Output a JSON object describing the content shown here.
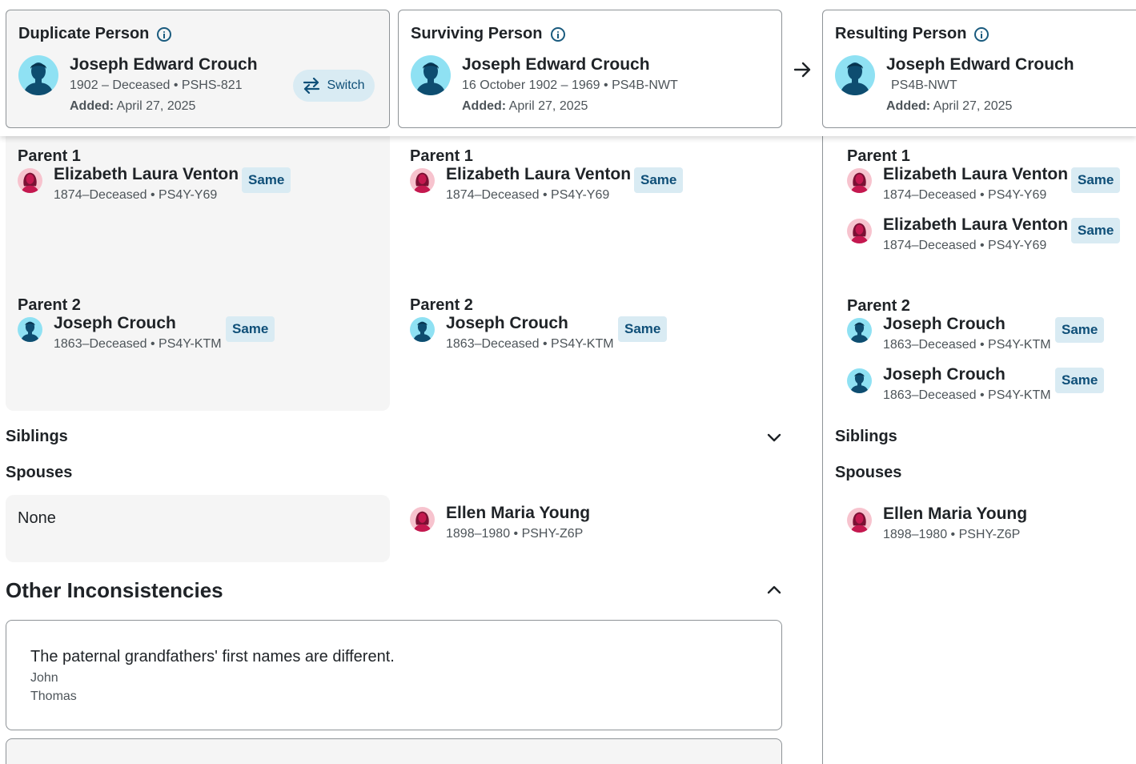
{
  "header": {
    "duplicate": {
      "title": "Duplicate Person",
      "name": "Joseph Edward Crouch",
      "meta": "1902 – Deceased • PSHS-821",
      "added_label": "Added:",
      "added_date": "April 27, 2025",
      "switch_label": "Switch"
    },
    "surviving": {
      "title": "Surviving Person",
      "name": "Joseph Edward Crouch",
      "meta": "16 October 1902 – 1969 • PS4B-NWT",
      "added_label": "Added:",
      "added_date": "April 27, 2025"
    },
    "resulting": {
      "title": "Resulting Person",
      "name": "Joseph Edward Crouch",
      "meta": "PS4B-NWT",
      "added_label": "Added:",
      "added_date": "April 27, 2025"
    }
  },
  "parents": {
    "parent1_label": "Parent 1",
    "parent2_label": "Parent 2",
    "mother": {
      "name": "Elizabeth Laura Venton",
      "meta": "1874–Deceased • PS4Y-Y69"
    },
    "father": {
      "name": "Joseph Crouch",
      "meta": "1863–Deceased • PS4Y-KTM"
    },
    "same_label": "Same"
  },
  "siblings_label": "Siblings",
  "spouses": {
    "label": "Spouses",
    "none_text": "None",
    "spouse": {
      "name": "Ellen Maria Young",
      "meta": "1898–1980 • PSHY-Z6P"
    }
  },
  "other_inconsistencies": {
    "title": "Other Inconsistencies",
    "message": "The paternal grandfathers' first names are different.",
    "values": [
      "John",
      "Thomas"
    ]
  },
  "colors": {
    "accent": "#0f4f78",
    "badge_bg": "#d9ebf3",
    "panel_bg": "#f5f5f5",
    "male_avatar_bg": "#8fe1f3",
    "female_avatar_bg": "#f7c3ce"
  }
}
